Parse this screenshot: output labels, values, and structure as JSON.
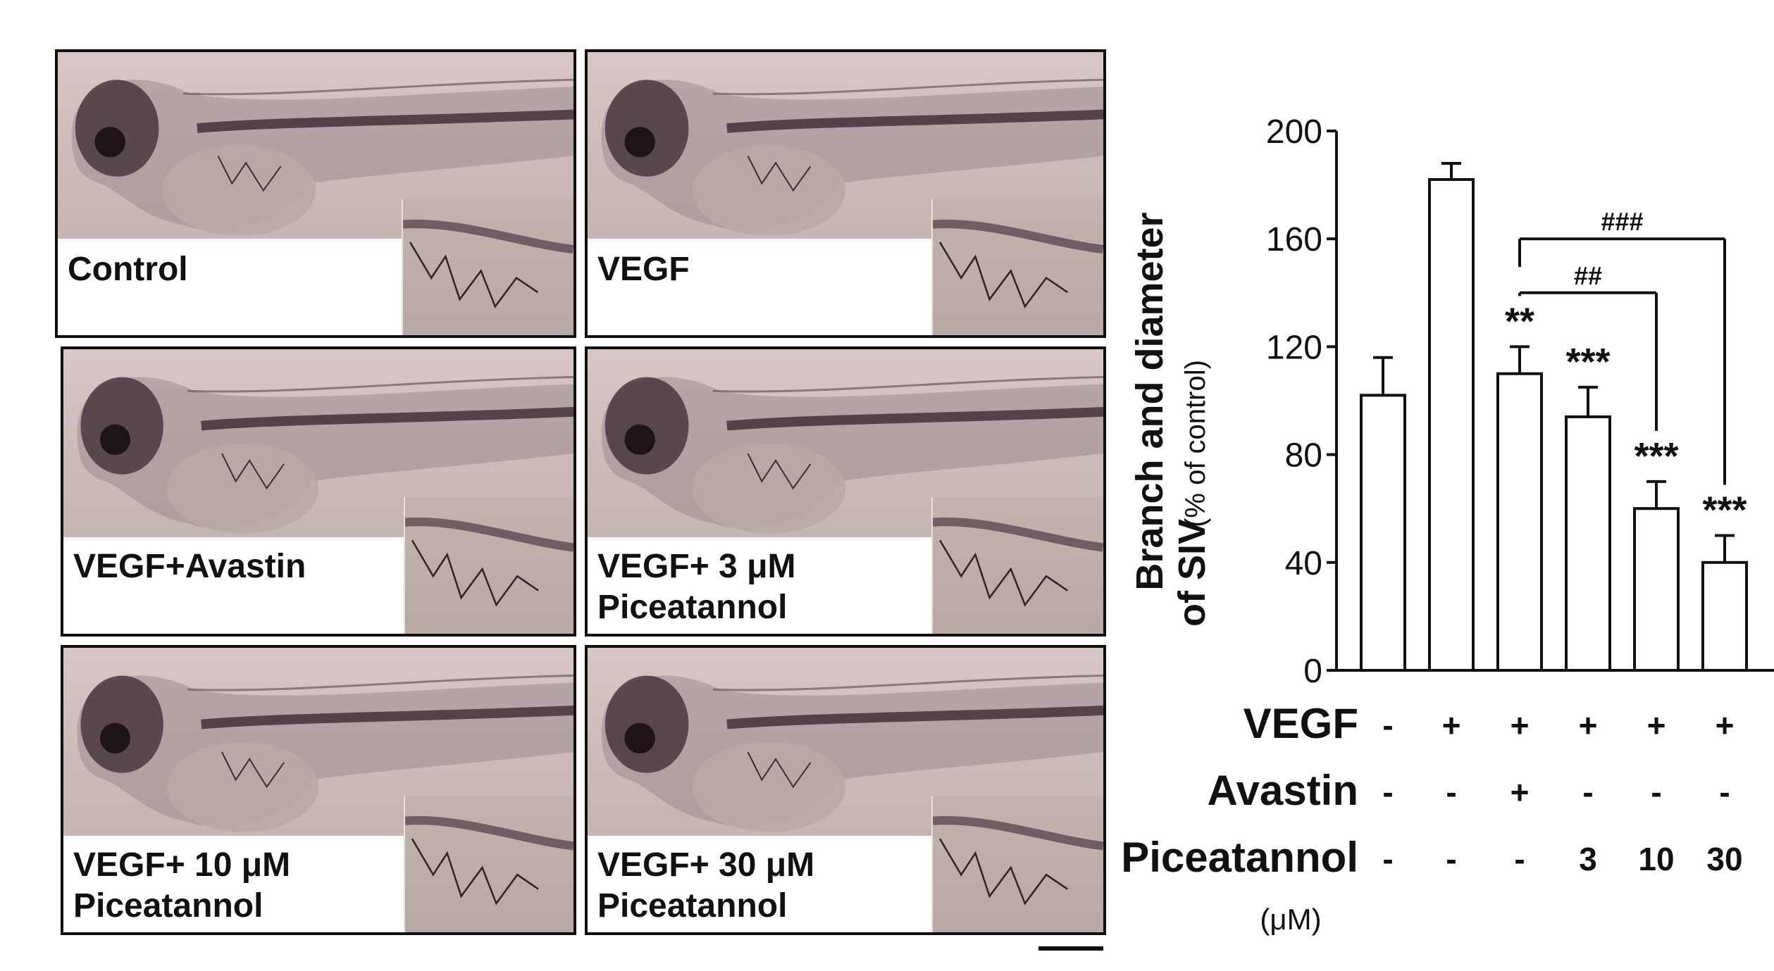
{
  "panels": [
    {
      "label": "Control"
    },
    {
      "label": "VEGF"
    },
    {
      "label": "VEGF+Avastin"
    },
    {
      "label": "VEGF+ 3 μM\n Piceatannol"
    },
    {
      "label": "VEGF+ 10 μM\n Piceatannol"
    },
    {
      "label": "VEGF+ 30 μM\n Piceatannol"
    }
  ],
  "chart_data": {
    "type": "bar",
    "ylabel_bold_1": "Branch and diameter",
    "ylabel_bold_2": "of SIV",
    "ylabel_unit": "(% of control)",
    "ylim": [
      0,
      200
    ],
    "yticks": [
      "0",
      "40",
      "80",
      "120",
      "160",
      "200"
    ],
    "values": [
      102,
      182,
      110,
      94,
      60,
      40
    ],
    "errors": [
      14,
      6,
      10,
      11,
      10,
      10
    ],
    "significance": [
      "",
      "",
      "**",
      "***",
      "***",
      "***"
    ],
    "brackets": [
      {
        "from": 2,
        "to": 4,
        "label": "##"
      },
      {
        "from": 2,
        "to": 5,
        "label": "###"
      }
    ],
    "conditions": [
      {
        "label": "VEGF",
        "values": [
          "-",
          "+",
          "+",
          "+",
          "+",
          "+"
        ]
      },
      {
        "label": "Avastin",
        "values": [
          "-",
          "-",
          "+",
          "-",
          "-",
          "-"
        ]
      },
      {
        "label": "Piceatannol",
        "sublabel": "(μM)",
        "values": [
          "-",
          "-",
          "-",
          "3",
          "10",
          "30"
        ]
      }
    ],
    "colors": {
      "bar_fill": "#ffffff",
      "bar_stroke": "#111111"
    }
  }
}
